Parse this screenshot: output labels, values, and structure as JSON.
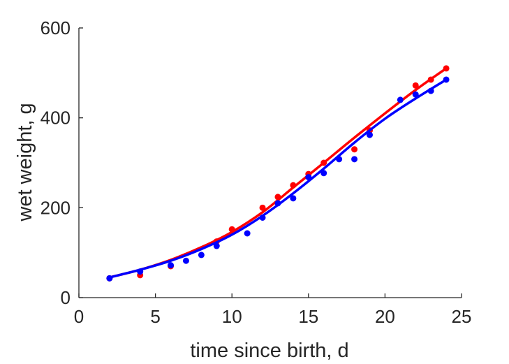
{
  "chart_data": {
    "type": "scatter",
    "title": "",
    "xlabel": "time since birth, d",
    "ylabel": "wet weight, g",
    "xlim": [
      0,
      25
    ],
    "ylim": [
      0,
      600
    ],
    "xticks": [
      0,
      5,
      10,
      15,
      20,
      25
    ],
    "yticks": [
      0,
      200,
      400,
      600
    ],
    "grid": false,
    "legend": "none",
    "series": [
      {
        "color": "#ff0000",
        "points": {
          "x": [
            2,
            4,
            6,
            9,
            10,
            12,
            13,
            14,
            15,
            16,
            18,
            19,
            22,
            23,
            24
          ],
          "y": [
            43,
            50,
            70,
            125,
            152,
            200,
            224,
            250,
            275,
            300,
            330,
            372,
            472,
            485,
            510
          ]
        },
        "fit": {
          "x": [
            2,
            4,
            6,
            8,
            10,
            12,
            14,
            16,
            18,
            20,
            22,
            24
          ],
          "y": [
            45,
            62,
            84,
            112,
            146,
            190,
            245,
            300,
            356,
            410,
            462,
            510
          ]
        }
      },
      {
        "color": "#0000ff",
        "points": {
          "x": [
            2,
            4,
            6,
            7,
            8,
            9,
            11,
            12,
            13,
            14,
            15,
            16,
            17,
            18,
            19,
            21,
            22,
            23,
            24
          ],
          "y": [
            43,
            58,
            72,
            82,
            95,
            115,
            143,
            178,
            210,
            221,
            268,
            277,
            308,
            308,
            362,
            440,
            452,
            460,
            485
          ]
        },
        "fit": {
          "x": [
            2,
            4,
            6,
            8,
            10,
            12,
            14,
            16,
            18,
            20,
            22,
            24
          ],
          "y": [
            45,
            62,
            82,
            108,
            140,
            182,
            232,
            287,
            345,
            398,
            443,
            485
          ]
        }
      }
    ]
  }
}
